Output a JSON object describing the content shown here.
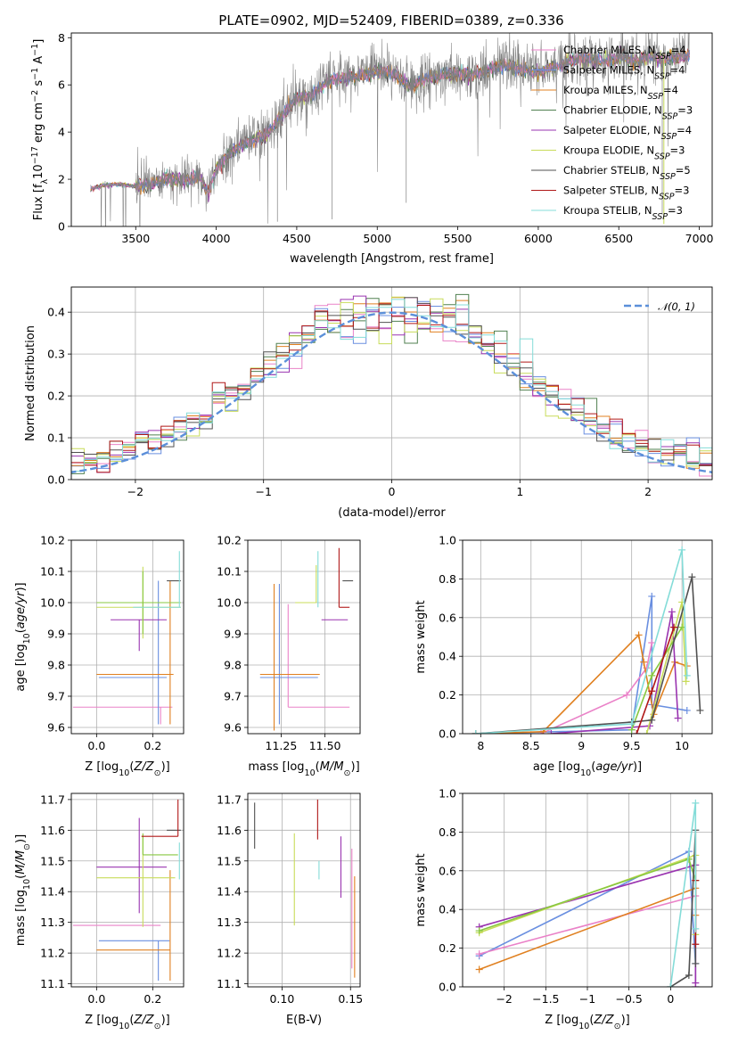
{
  "figure": {
    "title": "PLATE=0902, MJD=52409, FIBERID=0389, z=0.336"
  },
  "colors": {
    "Chabrier MILES": "#ea82c8",
    "Salpeter MILES": "#6a8fe0",
    "Kroupa MILES": "#e08020",
    "Chabrier ELODIE": "#508050",
    "Salpeter ELODIE": "#9a34b0",
    "Kroupa ELODIE": "#c8dc5a",
    "Chabrier STELIB": "#505050",
    "Salpeter STELIB": "#b01818",
    "Kroupa STELIB": "#84dcd8",
    "extra_green": "#88c840",
    "data_gray": "#808080",
    "gauss": "#5b8fd9"
  },
  "chart_data": [
    {
      "id": "spectrum",
      "type": "line",
      "xlabel": "wavelength [Angstrom, rest frame]",
      "ylabel": "Flux [f_λ 10^-17 erg cm^-2 s^-1 A^-1]",
      "xlim": [
        3100,
        7080
      ],
      "ylim": [
        0,
        8.2
      ],
      "xticks": [
        3500,
        4000,
        4500,
        5000,
        5500,
        6000,
        6500,
        7000
      ],
      "yticks": [
        0,
        2,
        4,
        6,
        8
      ],
      "grid": false,
      "legend_position": "top-right",
      "data_range": [
        3220,
        6940
      ],
      "continuum_points": [
        [
          3220,
          1.6
        ],
        [
          3300,
          1.75
        ],
        [
          3400,
          1.8
        ],
        [
          3480,
          1.7
        ],
        [
          3550,
          1.75
        ],
        [
          3700,
          2.0
        ],
        [
          3800,
          2.0
        ],
        [
          3900,
          2.1
        ],
        [
          3950,
          1.4
        ],
        [
          4000,
          2.5
        ],
        [
          4100,
          3.2
        ],
        [
          4200,
          3.6
        ],
        [
          4300,
          3.8
        ],
        [
          4400,
          4.6
        ],
        [
          4500,
          5.5
        ],
        [
          4600,
          5.6
        ],
        [
          4700,
          6.2
        ],
        [
          4800,
          6.3
        ],
        [
          4900,
          6.4
        ],
        [
          5000,
          6.6
        ],
        [
          5100,
          6.5
        ],
        [
          5200,
          5.9
        ],
        [
          5300,
          6.3
        ],
        [
          5400,
          6.4
        ],
        [
          5500,
          6.5
        ],
        [
          5600,
          6.4
        ],
        [
          5700,
          6.7
        ],
        [
          5800,
          6.8
        ],
        [
          5900,
          6.7
        ],
        [
          6000,
          6.5
        ],
        [
          6100,
          6.8
        ],
        [
          6200,
          7.0
        ],
        [
          6300,
          7.1
        ],
        [
          6400,
          7.0
        ],
        [
          6500,
          7.2
        ],
        [
          6600,
          7.0
        ],
        [
          6700,
          7.2
        ],
        [
          6800,
          7.1
        ],
        [
          6940,
          7.3
        ]
      ],
      "series": [
        {
          "name": "Chabrier MILES",
          "nssp": "4"
        },
        {
          "name": "Salpeter MILES",
          "nssp": "4"
        },
        {
          "name": "Kroupa MILES",
          "nssp": "4"
        },
        {
          "name": "Chabrier ELODIE",
          "nssp": "3"
        },
        {
          "name": "Salpeter ELODIE",
          "nssp": "4"
        },
        {
          "name": "Kroupa ELODIE",
          "nssp": "3"
        },
        {
          "name": "Chabrier STELIB",
          "nssp": "5"
        },
        {
          "name": "Salpeter STELIB",
          "nssp": "3"
        },
        {
          "name": "Kroupa STELIB",
          "nssp": "3"
        }
      ]
    },
    {
      "id": "residuals",
      "type": "line",
      "xlabel": "(data-model)/error",
      "ylabel": "Normed distribution",
      "xlim": [
        -2.5,
        2.5
      ],
      "ylim": [
        0,
        0.46
      ],
      "xticks": [
        -2,
        -1,
        0,
        1,
        2
      ],
      "yticks": [
        0.0,
        0.1,
        0.2,
        0.3,
        0.4
      ],
      "grid": true,
      "legend_position": "top-right",
      "legend": "𝒩(0, 1)",
      "bin_width": 0.1
    },
    {
      "id": "age-vs-Z",
      "type": "scatter",
      "xlabel": "Z [log10(Z/Z⊙)]",
      "ylabel": "age [log10(age/yr)]",
      "xlim": [
        -0.09,
        0.31
      ],
      "ylim": [
        9.58,
        10.2
      ],
      "xticks": [
        0.0,
        0.2
      ],
      "xtick_labels": [
        "0.0",
        "0.2"
      ],
      "yticks": [
        9.6,
        9.7,
        9.8,
        9.9,
        10.0,
        10.1,
        10.2
      ],
      "grid": true,
      "points": [
        {
          "series": "Chabrier MILES",
          "x": 0.228,
          "xerr": [
            0.312,
            0.042
          ],
          "y": 9.665,
          "yerr": [
            0.055,
            0.0
          ]
        },
        {
          "series": "Salpeter MILES",
          "x": 0.22,
          "xerr": [
            0.212,
            0.03
          ],
          "y": 9.76,
          "yerr": [
            0.15,
            0.31
          ]
        },
        {
          "series": "Kroupa MILES",
          "x": 0.262,
          "xerr": [
            0.262,
            0.012
          ],
          "y": 9.77,
          "yerr": [
            0.16,
            0.3
          ]
        },
        {
          "series": "Salpeter ELODIE",
          "x": 0.152,
          "xerr": [
            0.102,
            0.098
          ],
          "y": 9.945,
          "yerr": [
            0.1,
            0.0
          ]
        },
        {
          "series": "Kroupa ELODIE",
          "x": 0.165,
          "xerr": [
            0.165,
            0.135
          ],
          "y": 9.985,
          "yerr": [
            0.1,
            0.13
          ]
        },
        {
          "series": "extra_green",
          "x": 0.165,
          "xerr": [
            0.165,
            0.135
          ],
          "y": 10.0,
          "yerr": [
            0.1,
            0.1
          ]
        },
        {
          "series": "Chabrier STELIB",
          "x": 0.285,
          "xerr": [
            0.035,
            0.015
          ],
          "y": 10.07,
          "yerr": [
            0.0,
            0.0
          ]
        },
        {
          "series": "Kroupa STELIB",
          "x": 0.295,
          "xerr": [
            0.165,
            0.005
          ],
          "y": 9.985,
          "yerr": [
            0.0,
            0.18
          ]
        }
      ]
    },
    {
      "id": "age-vs-mass",
      "type": "scatter",
      "xlabel": "mass [log10(M/M⊙)]",
      "xlim": [
        11.06,
        11.7
      ],
      "ylim": [
        9.58,
        10.2
      ],
      "xticks": [
        11.25,
        11.5
      ],
      "xtick_labels": [
        "11.25",
        "11.50"
      ],
      "yticks": [
        9.6,
        9.7,
        9.8,
        9.9,
        10.0,
        10.1,
        10.2
      ],
      "grid": true,
      "points": [
        {
          "series": "Chabrier MILES",
          "x": 11.29,
          "xerr": [
            0.0,
            0.35
          ],
          "y": 9.665,
          "yerr": [
            0.0,
            0.33
          ]
        },
        {
          "series": "Salpeter MILES",
          "x": 11.24,
          "xerr": [
            0.11,
            0.22
          ],
          "y": 9.76,
          "yerr": [
            0.15,
            0.3
          ]
        },
        {
          "series": "Kroupa MILES",
          "x": 11.21,
          "xerr": [
            0.08,
            0.26
          ],
          "y": 9.77,
          "yerr": [
            0.18,
            0.29
          ]
        },
        {
          "series": "Salpeter ELODIE",
          "x": 11.48,
          "xerr": [
            0.0,
            0.15
          ],
          "y": 9.945,
          "yerr": [
            0.0,
            0.0
          ]
        },
        {
          "series": "Kroupa ELODIE",
          "x": 11.45,
          "xerr": [
            0.12,
            0.0
          ],
          "y": 10.0,
          "yerr": [
            0.0,
            0.12
          ]
        },
        {
          "series": "Chabrier STELIB",
          "x": 11.6,
          "xerr": [
            0.0,
            0.06
          ],
          "y": 10.07,
          "yerr": [
            0.0,
            0.0
          ]
        },
        {
          "series": "Salpeter STELIB",
          "x": 11.58,
          "xerr": [
            0.0,
            0.06
          ],
          "y": 9.985,
          "yerr": [
            0.0,
            0.19
          ]
        },
        {
          "series": "Kroupa STELIB",
          "x": 11.46,
          "xerr": [
            0.0,
            0.0
          ],
          "y": 9.985,
          "yerr": [
            0.0,
            0.18
          ]
        }
      ]
    },
    {
      "id": "weight-vs-age",
      "type": "line",
      "xlabel": "age [log10(age/yr)]",
      "ylabel": "mass weight",
      "xlim": [
        7.82,
        10.3
      ],
      "ylim": [
        0,
        1
      ],
      "xticks": [
        8.0,
        8.5,
        9.0,
        9.5,
        10.0
      ],
      "yticks": [
        0.0,
        0.2,
        0.4,
        0.6,
        0.8,
        1.0
      ],
      "grid": true,
      "series": [
        {
          "name": "Salpeter MILES",
          "x": [
            7.95,
            9.5,
            9.7,
            9.7,
            10.05
          ],
          "y": [
            0.0,
            0.02,
            0.71,
            0.15,
            0.12
          ]
        },
        {
          "name": "Chabrier MILES",
          "x": [
            8.6,
            9.45,
            9.65,
            9.7
          ],
          "y": [
            0.0,
            0.2,
            0.34,
            0.47
          ]
        },
        {
          "name": "Kroupa MILES",
          "x": [
            7.95,
            8.62,
            9.57,
            9.62,
            9.72,
            9.93,
            10.05
          ],
          "y": [
            0.0,
            0.01,
            0.51,
            0.37,
            0.1,
            0.37,
            0.35
          ]
        },
        {
          "name": "Salpeter ELODIE",
          "x": [
            8.7,
            9.68,
            9.9,
            9.96
          ],
          "y": [
            0.0,
            0.04,
            0.63,
            0.08
          ]
        },
        {
          "name": "Kroupa ELODIE",
          "x": [
            9.65,
            10.0,
            10.04
          ],
          "y": [
            0.0,
            0.68,
            0.27
          ]
        },
        {
          "name": "extra_green",
          "x": [
            9.5,
            9.7,
            10.0
          ],
          "y": [
            0.02,
            0.3,
            0.55
          ]
        },
        {
          "name": "Chabrier STELIB",
          "x": [
            7.95,
            9.5,
            9.7,
            10.1,
            10.18
          ],
          "y": [
            0.0,
            0.06,
            0.07,
            0.81,
            0.12
          ]
        },
        {
          "name": "Salpeter STELIB",
          "x": [
            9.55,
            9.7,
            9.92
          ],
          "y": [
            0.0,
            0.22,
            0.55
          ]
        },
        {
          "name": "Kroupa STELIB",
          "x": [
            7.95,
            9.5,
            10.0,
            10.05
          ],
          "y": [
            0.0,
            0.05,
            0.95,
            0.3
          ]
        }
      ]
    },
    {
      "id": "mass-vs-Z",
      "type": "scatter",
      "xlabel": "Z [log10(Z/Z⊙)]",
      "ylabel": "mass [log10(M/M⊙)]",
      "xlim": [
        -0.09,
        0.31
      ],
      "ylim": [
        11.09,
        11.72
      ],
      "xticks": [
        0.0,
        0.2
      ],
      "xtick_labels": [
        "0.0",
        "0.2"
      ],
      "yticks": [
        11.1,
        11.2,
        11.3,
        11.4,
        11.5,
        11.6,
        11.7
      ],
      "grid": true,
      "points": [
        {
          "series": "Chabrier MILES",
          "x": 0.228,
          "xerr": [
            0.312,
            0.0
          ],
          "y": 11.29,
          "yerr": [
            0.0,
            0.0
          ]
        },
        {
          "series": "Salpeter MILES",
          "x": 0.22,
          "xerr": [
            0.212,
            0.04
          ],
          "y": 11.24,
          "yerr": [
            0.13,
            0.0
          ]
        },
        {
          "series": "Kroupa MILES",
          "x": 0.262,
          "xerr": [
            0.262,
            0.0
          ],
          "y": 11.21,
          "yerr": [
            0.1,
            0.26
          ]
        },
        {
          "series": "Salpeter ELODIE",
          "x": 0.152,
          "xerr": [
            0.152,
            0.098
          ],
          "y": 11.48,
          "yerr": [
            0.15,
            0.16
          ]
        },
        {
          "series": "Kroupa ELODIE",
          "x": 0.165,
          "xerr": [
            0.165,
            0.115
          ],
          "y": 11.445,
          "yerr": [
            0.16,
            0.14
          ]
        },
        {
          "series": "extra_green",
          "x": 0.165,
          "xerr": [
            0.0,
            0.125
          ],
          "y": 11.52,
          "yerr": [
            0.0,
            0.07
          ]
        },
        {
          "series": "Chabrier STELIB",
          "x": 0.285,
          "xerr": [
            0.035,
            0.015
          ],
          "y": 11.6,
          "yerr": [
            0.0,
            0.0
          ]
        },
        {
          "series": "Salpeter STELIB",
          "x": 0.29,
          "xerr": [
            0.13,
            0.0
          ],
          "y": 11.58,
          "yerr": [
            0.0,
            0.12
          ]
        },
        {
          "series": "Kroupa STELIB",
          "x": 0.295,
          "xerr": [
            0.0,
            0.0
          ],
          "y": 11.46,
          "yerr": [
            0.02,
            0.1
          ]
        }
      ]
    },
    {
      "id": "mass-vs-EBV",
      "type": "scatter",
      "xlabel": "E(B-V)",
      "xlim": [
        0.075,
        0.157
      ],
      "ylim": [
        11.09,
        11.72
      ],
      "xticks": [
        0.1,
        0.15
      ],
      "xtick_labels": [
        "0.10",
        "0.15"
      ],
      "yticks": [
        11.1,
        11.2,
        11.3,
        11.4,
        11.5,
        11.6,
        11.7
      ],
      "grid": true,
      "points": [
        {
          "series": "Chabrier STELIB",
          "x": 0.08,
          "xerr": [
            0.0,
            0.0
          ],
          "y": 11.6,
          "yerr": [
            0.06,
            0.09
          ]
        },
        {
          "series": "Kroupa ELODIE",
          "x": 0.109,
          "xerr": [
            0.0,
            0.0
          ],
          "y": 11.44,
          "yerr": [
            0.15,
            0.15
          ]
        },
        {
          "series": "Salpeter STELIB",
          "x": 0.126,
          "xerr": [
            0.0,
            0.0
          ],
          "y": 11.6,
          "yerr": [
            0.03,
            0.1
          ]
        },
        {
          "series": "Kroupa STELIB",
          "x": 0.127,
          "xerr": [
            0.0,
            0.0
          ],
          "y": 11.5,
          "yerr": [
            0.06,
            0.0
          ]
        },
        {
          "series": "Salpeter ELODIE",
          "x": 0.143,
          "xerr": [
            0.0,
            0.0
          ],
          "y": 11.48,
          "yerr": [
            0.1,
            0.1
          ]
        },
        {
          "series": "Chabrier MILES",
          "x": 0.151,
          "xerr": [
            0.0,
            0.0
          ],
          "y": 11.29,
          "yerr": [
            0.14,
            0.25
          ]
        },
        {
          "series": "Kroupa MILES",
          "x": 0.153,
          "xerr": [
            0.0,
            0.0
          ],
          "y": 11.3,
          "yerr": [
            0.18,
            0.15
          ]
        }
      ]
    },
    {
      "id": "weight-vs-Z",
      "type": "line",
      "xlabel": "Z [log10(Z/Z⊙)]",
      "ylabel": "mass weight",
      "xlim": [
        -2.5,
        0.5
      ],
      "ylim": [
        0,
        1
      ],
      "xticks": [
        -2.0,
        -1.5,
        -1.0,
        -0.5,
        0.0
      ],
      "yticks": [
        0.0,
        0.2,
        0.4,
        0.6,
        0.8,
        1.0
      ],
      "grid": true,
      "series": [
        {
          "name": "Salpeter MILES",
          "x": [
            -2.3,
            0.22,
            0.3,
            0.3
          ],
          "y": [
            0.16,
            0.7,
            0.12,
            0.0
          ]
        },
        {
          "name": "Chabrier MILES",
          "x": [
            -2.3,
            0.3,
            0.3
          ],
          "y": [
            0.17,
            0.47,
            0.0
          ]
        },
        {
          "name": "Kroupa MILES",
          "x": [
            -2.3,
            0.3,
            0.3
          ],
          "y": [
            0.09,
            0.51,
            0.37
          ]
        },
        {
          "name": "Salpeter ELODIE",
          "x": [
            -2.3,
            0.3,
            0.3
          ],
          "y": [
            0.31,
            0.63,
            0.02
          ]
        },
        {
          "name": "Kroupa ELODIE",
          "x": [
            -2.3,
            0.3,
            0.3
          ],
          "y": [
            0.28,
            0.68,
            0.27
          ]
        },
        {
          "name": "extra_green",
          "x": [
            -2.3,
            0.22,
            0.3
          ],
          "y": [
            0.29,
            0.66,
            0.55
          ]
        },
        {
          "name": "Chabrier STELIB",
          "x": [
            0.0,
            0.22,
            0.3,
            0.3
          ],
          "y": [
            0.0,
            0.06,
            0.81,
            0.12
          ]
        },
        {
          "name": "Salpeter STELIB",
          "x": [
            0.3,
            0.3
          ],
          "y": [
            0.22,
            0.55
          ]
        },
        {
          "name": "Kroupa STELIB",
          "x": [
            0.0,
            0.3,
            0.3
          ],
          "y": [
            0.0,
            0.95,
            0.3
          ]
        }
      ]
    }
  ]
}
